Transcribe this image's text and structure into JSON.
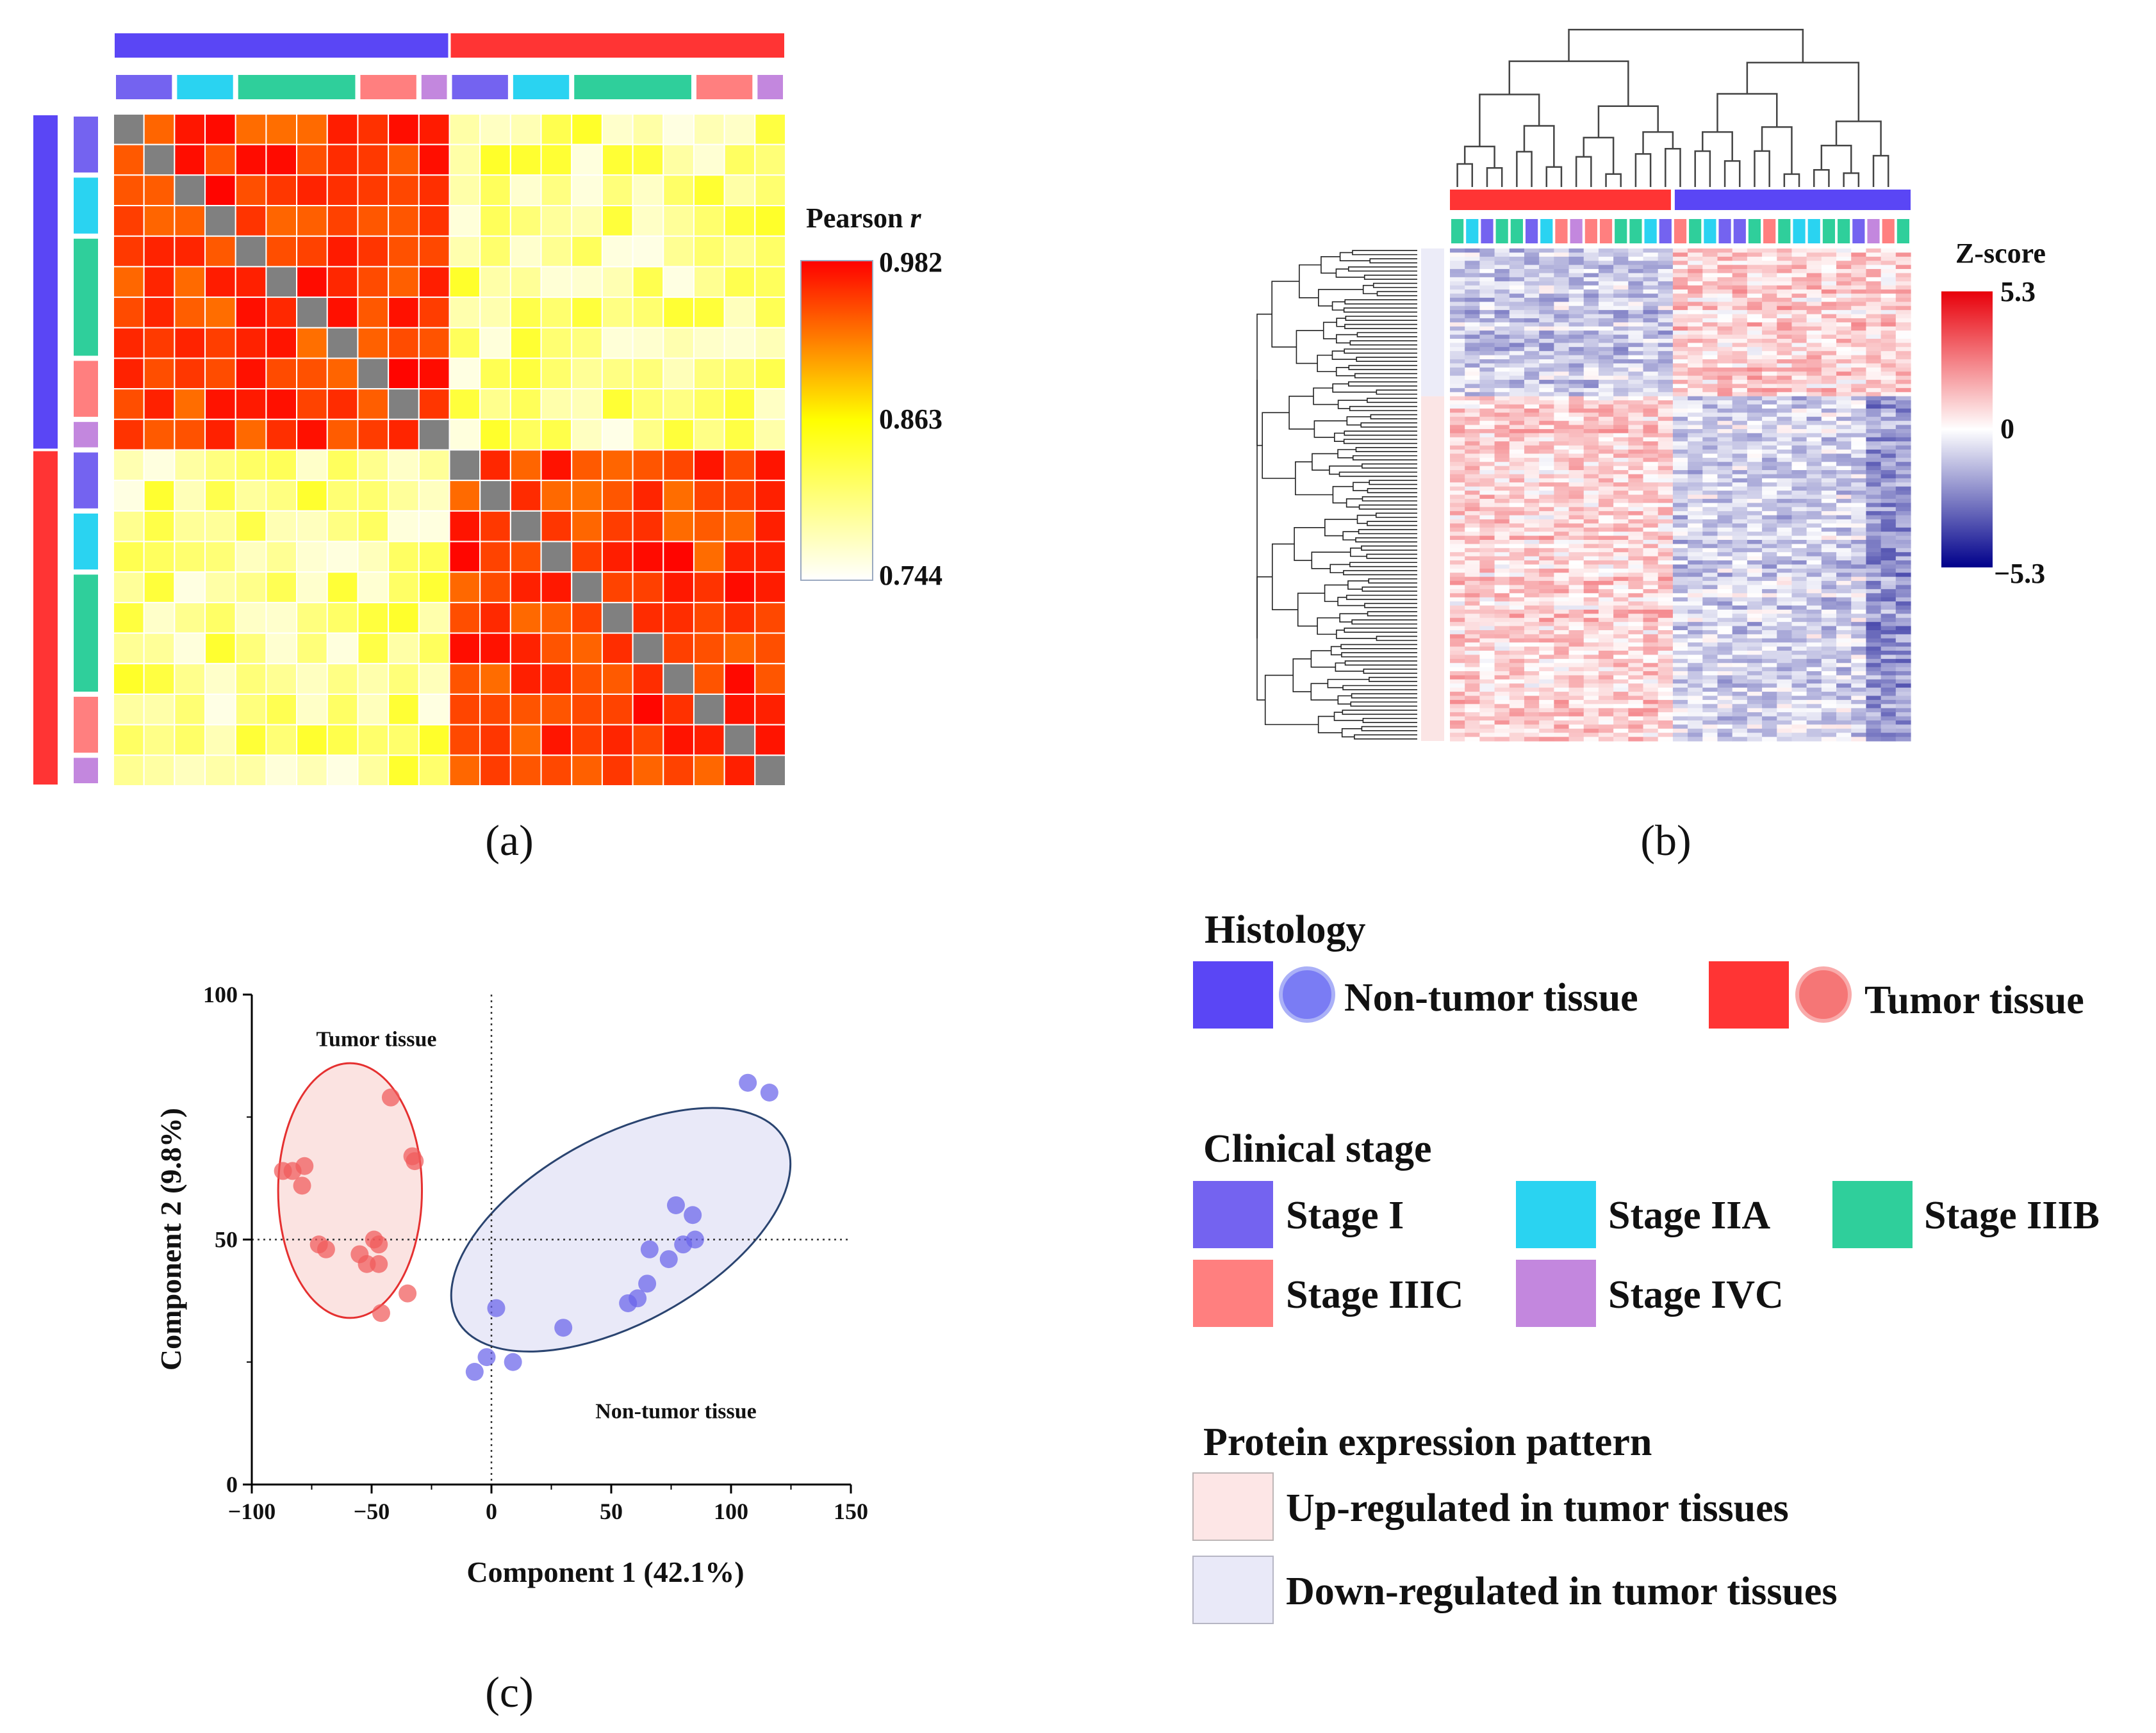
{
  "colors": {
    "non_tumor": "#5a46f5",
    "tumor": "#ff3434",
    "stage_i": "#7463f0",
    "stage_iia": "#2ad3f1",
    "stage_iiib": "#2fcf9b",
    "stage_iiic": "#ff7f7f",
    "stage_ivc": "#c387de",
    "diag": "#808080",
    "up_patch": "#fde6e6",
    "down_patch": "#e9e9f8"
  },
  "panel_labels": {
    "a": "(a)",
    "b": "(b)",
    "c": "(c)"
  },
  "legend": {
    "histology_title": "Histology",
    "non_tumor": "Non-tumor tissue",
    "tumor": "Tumor tissue",
    "stage_title": "Clinical stage",
    "stage_i": "Stage I",
    "stage_iia": "Stage IIA",
    "stage_iiib": "Stage IIIB",
    "stage_iiic": "Stage IIIC",
    "stage_ivc": "Stage IVC",
    "pattern_title": "Protein expression pattern",
    "up": "Up-regulated in tumor tissues",
    "down": "Down-regulated in tumor tissues"
  },
  "chart_data": [
    {
      "type": "heatmap",
      "panel": "(a)",
      "colorbar_title": "Pearson",
      "colorbar_title_var": "r",
      "colorbar_ticks": [
        "0.982",
        "0.863",
        "0.744"
      ],
      "vmin": 0.744,
      "vmid": 0.863,
      "vmax": 0.982,
      "samples": 22,
      "sample_histology": [
        "non_tumor",
        "non_tumor",
        "non_tumor",
        "non_tumor",
        "non_tumor",
        "non_tumor",
        "non_tumor",
        "non_tumor",
        "non_tumor",
        "non_tumor",
        "non_tumor",
        "tumor",
        "tumor",
        "tumor",
        "tumor",
        "tumor",
        "tumor",
        "tumor",
        "tumor",
        "tumor",
        "tumor",
        "tumor"
      ],
      "sample_stage": [
        "stage_i",
        "stage_i",
        "stage_iia",
        "stage_iia",
        "stage_iiib",
        "stage_iiib",
        "stage_iiib",
        "stage_iiib",
        "stage_iiic",
        "stage_iiic",
        "stage_ivc",
        "stage_i",
        "stage_i",
        "stage_iia",
        "stage_iia",
        "stage_iiib",
        "stage_iiib",
        "stage_iiib",
        "stage_iiib",
        "stage_iiic",
        "stage_iiic",
        "stage_ivc"
      ],
      "within_group_r": 0.955,
      "between_group_r": 0.8,
      "diagonal": "gray"
    },
    {
      "type": "heatmap",
      "panel": "(b)",
      "colorbar_title": "Z-score",
      "colorbar_ticks": [
        "5.3",
        "0",
        "−5.3"
      ],
      "vmin": -5.3,
      "vmax": 5.3,
      "column_groups": [
        "tumor",
        "non_tumor"
      ],
      "column_stages": [
        "stage_iiib",
        "stage_iia",
        "stage_i",
        "stage_iiib",
        "stage_iiib",
        "stage_i",
        "stage_iia",
        "stage_iiic",
        "stage_ivc",
        "stage_iiic",
        "stage_iiic",
        "stage_iiib",
        "stage_iiib",
        "stage_iia",
        "stage_i",
        "stage_iiic",
        "stage_iiib",
        "stage_iia",
        "stage_i",
        "stage_i",
        "stage_iiib",
        "stage_iiic",
        "stage_iiib",
        "stage_iia",
        "stage_iia",
        "stage_iiib",
        "stage_iiib",
        "stage_i",
        "stage_ivc",
        "stage_iiic",
        "stage_iiib"
      ],
      "row_groups": [
        "down",
        "up"
      ]
    },
    {
      "type": "scatter",
      "panel": "(c)",
      "xlabel": "Component 1 (42.1%)",
      "ylabel": "Component 2 (9.8%)",
      "xlim": [
        -100,
        150
      ],
      "ylim": [
        0,
        100
      ],
      "xticks": [
        "−100",
        "−50",
        "0",
        "50",
        "100",
        "150"
      ],
      "yticks": [
        "0",
        "50",
        "100"
      ],
      "ref_lines": {
        "x": 0,
        "y": 50
      },
      "series": [
        {
          "name": "Tumor tissue",
          "label": "Tumor tissue",
          "color": "#f05a5a",
          "points": [
            [
              -87,
              64
            ],
            [
              -83,
              64
            ],
            [
              -78,
              65
            ],
            [
              -79,
              61
            ],
            [
              -72,
              49
            ],
            [
              -69,
              48
            ],
            [
              -55,
              47
            ],
            [
              -52,
              45
            ],
            [
              -49,
              50
            ],
            [
              -47,
              49
            ],
            [
              -47,
              45
            ],
            [
              -42,
              79
            ],
            [
              -33,
              67
            ],
            [
              -32,
              66
            ],
            [
              -35,
              39
            ],
            [
              -46,
              35
            ]
          ],
          "ellipse": {
            "cx": -59,
            "cy": 60,
            "rx": 30,
            "ry": 26,
            "angle": 0
          }
        },
        {
          "name": "Non-tumor tissue",
          "label": "Non-tumor tissue",
          "color": "#6a64ea",
          "points": [
            [
              107,
              82
            ],
            [
              116,
              80
            ],
            [
              77,
              57
            ],
            [
              84,
              55
            ],
            [
              85,
              50
            ],
            [
              80,
              49
            ],
            [
              74,
              46
            ],
            [
              66,
              48
            ],
            [
              65,
              41
            ],
            [
              61,
              38
            ],
            [
              57,
              37
            ],
            [
              30,
              32
            ],
            [
              2,
              36
            ],
            [
              -2,
              26
            ],
            [
              -7,
              23
            ],
            [
              9,
              25
            ]
          ],
          "ellipse": {
            "cx": 54,
            "cy": 52,
            "rx": 78,
            "ry": 19,
            "angle": 29
          }
        }
      ]
    }
  ]
}
